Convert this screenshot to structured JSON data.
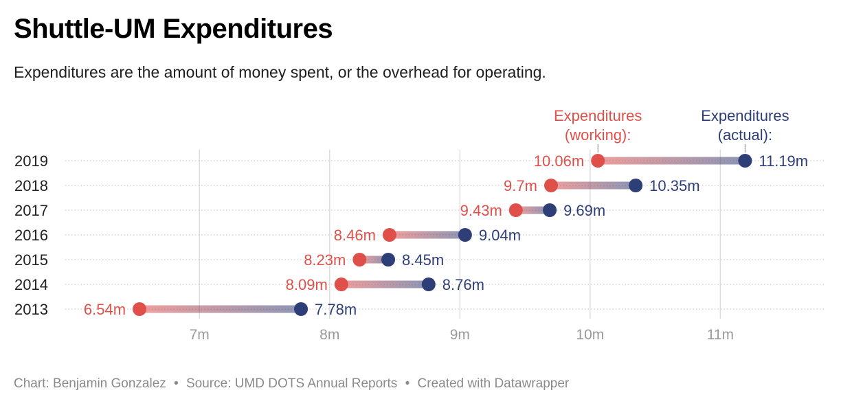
{
  "header": {
    "title": "Shuttle-UM Expenditures",
    "subtitle": "Expenditures are the amount of money spent, or the overhead for operating."
  },
  "footer": {
    "chart_by": "Chart: Benjamin Gonzalez",
    "source": "Source: UMD DOTS Annual Reports",
    "created_with": "Created with Datawrapper",
    "separator": "•"
  },
  "colors": {
    "working": "#e0504b",
    "actual": "#2e3f78",
    "gridline": "#dddddd",
    "row_line": "#cccccc",
    "axis_label": "#999999",
    "year_label": "#222222"
  },
  "chart_data": {
    "type": "dot-range",
    "title": "Shuttle-UM Expenditures",
    "subtitle": "Expenditures are the amount of money spent, or the overhead for operating.",
    "categories": [
      "2019",
      "2018",
      "2017",
      "2016",
      "2015",
      "2014",
      "2013"
    ],
    "series": [
      {
        "name": "Expenditures (working):",
        "name_lines": [
          "Expenditures",
          "(working):"
        ],
        "values": [
          10.06,
          9.7,
          9.43,
          8.46,
          8.23,
          8.09,
          6.54
        ],
        "labels": [
          "10.06m",
          "9.7m",
          "9.43m",
          "8.46m",
          "8.23m",
          "8.09m",
          "6.54m"
        ]
      },
      {
        "name": "Expenditures (actual):",
        "name_lines": [
          "Expenditures",
          "(actual):"
        ],
        "values": [
          11.19,
          10.35,
          9.69,
          9.04,
          8.45,
          8.76,
          7.78
        ],
        "labels": [
          "11.19m",
          "10.35m",
          "9.69m",
          "9.04m",
          "8.45m",
          "8.76m",
          "7.78m"
        ]
      }
    ],
    "x_ticks": [
      7,
      8,
      9,
      10,
      11
    ],
    "x_tick_labels": [
      "7m",
      "8m",
      "9m",
      "10m",
      "11m"
    ],
    "xlim": [
      5.97,
      11.8
    ],
    "grid": true,
    "legend": "inline labels above top row"
  }
}
